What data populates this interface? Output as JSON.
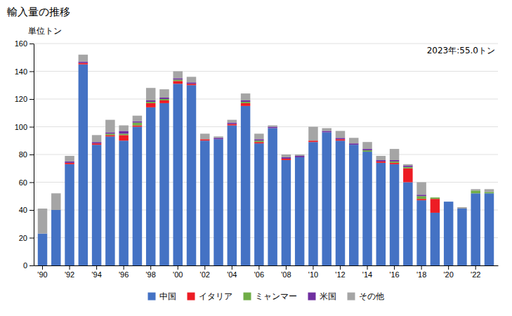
{
  "chart_data": {
    "type": "bar",
    "stacked": true,
    "title": "輸入量の推移",
    "ylabel": "単位トン",
    "annotation": "2023年:55.0トン",
    "categories": [
      "'90",
      null,
      "'92",
      null,
      "'94",
      null,
      "'96",
      null,
      "'98",
      null,
      "'00",
      null,
      "'02",
      null,
      "'04",
      null,
      "'06",
      null,
      "'08",
      null,
      "'10",
      null,
      "'12",
      null,
      "'14",
      null,
      "'16",
      null,
      "'18",
      null,
      "'20",
      null,
      "'22",
      null
    ],
    "series": [
      {
        "name": "中国",
        "color": "#4472c4",
        "values": [
          23,
          40,
          73,
          145,
          87,
          93,
          90,
          100,
          114,
          117,
          131,
          130,
          90,
          91,
          101,
          115,
          88,
          99,
          76,
          78,
          89,
          96,
          90,
          87,
          82,
          74,
          73,
          60,
          47,
          38,
          46,
          41,
          52,
          52
        ]
      },
      {
        "name": "イタリア",
        "color": "#ed1c24",
        "values": [
          0,
          0,
          1,
          1,
          1,
          1,
          4,
          1,
          3,
          2,
          2,
          1,
          1,
          0,
          1,
          2,
          1,
          0,
          1,
          0,
          1,
          0,
          1,
          0,
          0,
          1,
          1,
          10,
          1,
          10,
          0,
          0,
          0,
          0
        ]
      },
      {
        "name": "ミャンマー",
        "color": "#70ad47",
        "values": [
          0,
          0,
          0,
          0,
          0,
          1,
          1,
          2,
          1,
          1,
          1,
          0,
          0,
          0,
          0,
          1,
          1,
          0,
          0,
          0,
          0,
          0,
          0,
          0,
          1,
          0,
          1,
          1,
          2,
          1,
          0,
          0,
          2,
          1
        ]
      },
      {
        "name": "米国",
        "color": "#7030a0",
        "values": [
          0,
          0,
          1,
          1,
          1,
          1,
          2,
          1,
          1,
          1,
          1,
          1,
          0,
          1,
          1,
          1,
          1,
          1,
          1,
          1,
          0,
          1,
          1,
          1,
          1,
          1,
          1,
          1,
          1,
          0,
          0,
          0,
          0,
          0
        ]
      },
      {
        "name": "その他",
        "color": "#a5a5a5",
        "values": [
          18,
          12,
          4,
          5,
          5,
          9,
          4,
          4,
          9,
          6,
          5,
          4,
          4,
          1,
          2,
          5,
          4,
          1,
          2,
          1,
          10,
          2,
          5,
          4,
          5,
          3,
          8,
          1,
          9,
          0,
          0,
          1,
          1,
          2
        ]
      }
    ],
    "ylim": [
      0,
      160
    ],
    "yticks": [
      0,
      20,
      40,
      60,
      80,
      100,
      120,
      140,
      160
    ],
    "grid": true,
    "legend": "bottom"
  }
}
